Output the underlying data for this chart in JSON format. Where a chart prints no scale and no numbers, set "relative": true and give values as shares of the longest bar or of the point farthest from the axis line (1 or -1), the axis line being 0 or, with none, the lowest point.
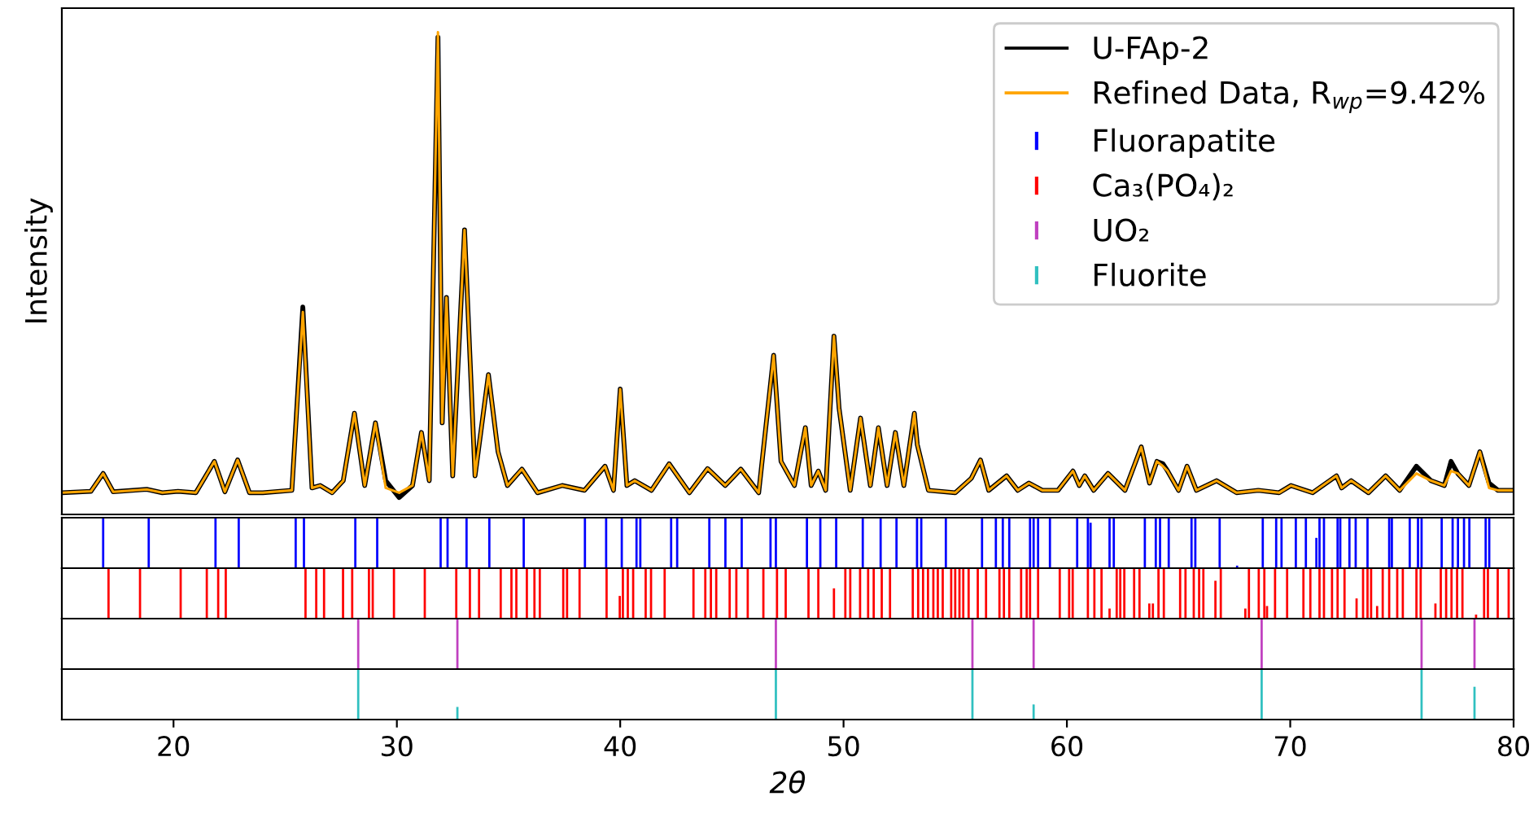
{
  "chart_data": [
    {
      "type": "line",
      "relative": true,
      "ylabel": "Intensity",
      "xlim": [
        15,
        80
      ],
      "tick_labels": false,
      "legend": "top right",
      "line_style": "solid",
      "marker": "none",
      "x": [
        15,
        16.3,
        16.85,
        17.3,
        18.8,
        19.5,
        20.2,
        21.0,
        21.83,
        22.3,
        22.87,
        23.4,
        24.0,
        25.3,
        25.79,
        26.2,
        26.57,
        27.1,
        27.6,
        28.1,
        28.56,
        29.04,
        29.5,
        30.1,
        30.7,
        31.1,
        31.45,
        31.84,
        32.03,
        32.22,
        32.5,
        33.03,
        33.5,
        34.1,
        34.53,
        34.95,
        35.6,
        36.3,
        37.4,
        38.4,
        39.32,
        39.7,
        40.0,
        40.3,
        40.65,
        41.4,
        42.19,
        43.1,
        43.91,
        44.7,
        45.4,
        46.2,
        46.87,
        47.2,
        47.8,
        48.29,
        48.55,
        48.87,
        49.2,
        49.57,
        49.8,
        50.3,
        50.76,
        51.2,
        51.56,
        51.95,
        52.32,
        52.7,
        53.17,
        53.3,
        53.8,
        55.0,
        55.72,
        56.13,
        56.5,
        57.3,
        57.8,
        58.3,
        58.9,
        59.6,
        60.27,
        60.55,
        60.8,
        61.2,
        61.84,
        62.6,
        63.33,
        63.7,
        64.03,
        64.3,
        64.51,
        65.0,
        65.38,
        65.8,
        66.7,
        67.6,
        68.57,
        69.5,
        70.03,
        71.0,
        72.07,
        72.3,
        72.73,
        73.5,
        74.27,
        74.9,
        75.65,
        76.3,
        76.9,
        77.2,
        77.5,
        78.0,
        78.49,
        78.9,
        79.3,
        80
      ],
      "series": [
        {
          "name": "U-FAp-2",
          "color": "#000000",
          "values": [
            0.045,
            0.048,
            0.085,
            0.047,
            0.052,
            0.045,
            0.048,
            0.045,
            0.11,
            0.047,
            0.113,
            0.045,
            0.045,
            0.05,
            0.43,
            0.055,
            0.06,
            0.045,
            0.07,
            0.21,
            0.06,
            0.19,
            0.07,
            0.035,
            0.06,
            0.17,
            0.07,
            0.99,
            0.19,
            0.45,
            0.08,
            0.59,
            0.08,
            0.29,
            0.13,
            0.06,
            0.094,
            0.045,
            0.06,
            0.05,
            0.1,
            0.05,
            0.26,
            0.06,
            0.07,
            0.05,
            0.105,
            0.045,
            0.095,
            0.06,
            0.094,
            0.045,
            0.33,
            0.11,
            0.06,
            0.18,
            0.06,
            0.09,
            0.05,
            0.37,
            0.22,
            0.05,
            0.2,
            0.06,
            0.18,
            0.06,
            0.17,
            0.06,
            0.21,
            0.145,
            0.05,
            0.045,
            0.075,
            0.113,
            0.05,
            0.08,
            0.05,
            0.065,
            0.05,
            0.05,
            0.09,
            0.06,
            0.08,
            0.05,
            0.085,
            0.05,
            0.14,
            0.065,
            0.11,
            0.105,
            0.09,
            0.05,
            0.1,
            0.05,
            0.07,
            0.045,
            0.05,
            0.045,
            0.06,
            0.045,
            0.08,
            0.055,
            0.07,
            0.045,
            0.08,
            0.05,
            0.1,
            0.07,
            0.06,
            0.11,
            0.085,
            0.06,
            0.13,
            0.065,
            0.05,
            0.05
          ]
        },
        {
          "name": "Refined Data, R$_{wp}$=9.42%",
          "color": "#ffa500",
          "values": [
            0.045,
            0.048,
            0.085,
            0.047,
            0.052,
            0.045,
            0.048,
            0.045,
            0.11,
            0.047,
            0.113,
            0.045,
            0.045,
            0.05,
            0.42,
            0.055,
            0.06,
            0.045,
            0.07,
            0.21,
            0.06,
            0.19,
            0.055,
            0.045,
            0.06,
            0.17,
            0.07,
            1.0,
            0.19,
            0.45,
            0.08,
            0.59,
            0.08,
            0.29,
            0.13,
            0.06,
            0.094,
            0.045,
            0.06,
            0.05,
            0.1,
            0.05,
            0.26,
            0.06,
            0.07,
            0.05,
            0.105,
            0.045,
            0.095,
            0.06,
            0.094,
            0.045,
            0.33,
            0.11,
            0.06,
            0.18,
            0.06,
            0.09,
            0.05,
            0.37,
            0.22,
            0.05,
            0.2,
            0.06,
            0.18,
            0.06,
            0.17,
            0.06,
            0.21,
            0.145,
            0.05,
            0.045,
            0.075,
            0.113,
            0.05,
            0.08,
            0.05,
            0.065,
            0.05,
            0.05,
            0.09,
            0.06,
            0.08,
            0.05,
            0.085,
            0.05,
            0.14,
            0.065,
            0.11,
            0.1,
            0.09,
            0.05,
            0.1,
            0.05,
            0.07,
            0.045,
            0.05,
            0.045,
            0.06,
            0.045,
            0.08,
            0.055,
            0.07,
            0.045,
            0.08,
            0.05,
            0.085,
            0.07,
            0.06,
            0.09,
            0.085,
            0.06,
            0.13,
            0.055,
            0.05,
            0.05
          ]
        }
      ]
    },
    {
      "type": "bar",
      "relative": true,
      "xlim": [
        15,
        80
      ],
      "tick_labels": false,
      "x": [
        16.85,
        18.89,
        21.88,
        22.92,
        25.47,
        25.84,
        28.14,
        29.12,
        31.96,
        32.27,
        33.12,
        34.14,
        35.68,
        38.42,
        39.37,
        40.07,
        40.73,
        40.9,
        42.28,
        42.55,
        43.99,
        44.71,
        45.44,
        46.73,
        46.97,
        48.36,
        48.96,
        49.67,
        50.86,
        51.66,
        52.37,
        53.29,
        53.48,
        54.58,
        56.2,
        56.82,
        57.13,
        57.42,
        58.35,
        58.51,
        58.71,
        59.24,
        60.46,
        60.94,
        61.06,
        61.91,
        62.1,
        63.49,
        63.98,
        64.17,
        64.56,
        65.58,
        65.75,
        66.84,
        67.62,
        68.77,
        69.37,
        69.61,
        70.25,
        70.7,
        71.17,
        71.31,
        71.51,
        72.12,
        72.24,
        72.65,
        72.93,
        73.46,
        74.43,
        74.55,
        75.35,
        75.72,
        75.88,
        76.78,
        77.27,
        77.51,
        77.78,
        78.02,
        78.75,
        78.91
      ],
      "series": [
        {
          "name": "Fluorapatite",
          "color": "#0000ff",
          "values": [
            1,
            1,
            1,
            1,
            1,
            1,
            1,
            1,
            1,
            1,
            1,
            1,
            1,
            1,
            1,
            1,
            1,
            1,
            1,
            1,
            1,
            1,
            1,
            1,
            1,
            1,
            1,
            1,
            1,
            1,
            1,
            1,
            1,
            1,
            1,
            1,
            1,
            1,
            1,
            1,
            1,
            1,
            1,
            1,
            0.9,
            1,
            1,
            1,
            1,
            1,
            1,
            1,
            1,
            1,
            0.05,
            1,
            1,
            1,
            1,
            1,
            0.6,
            1,
            1,
            1,
            1,
            1,
            1,
            1,
            1,
            1,
            1,
            1,
            1,
            1,
            1,
            1,
            1,
            1,
            1,
            1
          ]
        }
      ]
    },
    {
      "type": "bar",
      "relative": true,
      "xlim": [
        15,
        80
      ],
      "tick_labels": false,
      "x": [
        17.09,
        18.5,
        20.32,
        21.49,
        22.0,
        22.34,
        25.91,
        26.39,
        26.74,
        27.59,
        28.0,
        28.75,
        28.92,
        29.87,
        31.25,
        32.66,
        33.27,
        33.68,
        34.65,
        35.13,
        35.35,
        35.82,
        36.16,
        36.4,
        37.45,
        37.62,
        38.18,
        39.39,
        39.98,
        40.12,
        40.34,
        40.58,
        41.14,
        41.38,
        41.99,
        43.28,
        43.81,
        44.06,
        44.3,
        44.9,
        45.2,
        45.71,
        46.41,
        47.02,
        47.41,
        48.43,
        48.87,
        49.57,
        50.08,
        50.3,
        50.74,
        51.1,
        51.35,
        51.71,
        52.08,
        53.1,
        53.34,
        53.56,
        53.78,
        54.02,
        54.22,
        54.44,
        54.82,
        55.0,
        55.19,
        55.36,
        55.6,
        56.01,
        56.38,
        56.98,
        57.18,
        57.42,
        57.95,
        58.2,
        58.35,
        58.71,
        59.68,
        60.1,
        60.26,
        60.94,
        61.23,
        61.55,
        61.91,
        62.23,
        62.39,
        62.57,
        63.01,
        63.25,
        63.69,
        63.85,
        64.1,
        64.34,
        65.07,
        65.31,
        65.68,
        65.92,
        66.11,
        66.65,
        66.89,
        67.99,
        68.15,
        68.59,
        68.84,
        68.96,
        69.32,
        69.86,
        70.59,
        70.9,
        71.31,
        71.51,
        71.87,
        72.12,
        72.43,
        72.97,
        73.26,
        73.46,
        73.62,
        73.89,
        74.14,
        74.43,
        74.79,
        75.04,
        75.65,
        75.84,
        76.5,
        76.74,
        76.98,
        77.22,
        77.47,
        77.71,
        78.32,
        78.68,
        78.85,
        79.29,
        79.78
      ],
      "series": [
        {
          "name": "Ca₃(PO₄)₂",
          "color": "#ff0000",
          "values": [
            1,
            1,
            1,
            1,
            1,
            1,
            1,
            1,
            1,
            1,
            1,
            1,
            1,
            1,
            1,
            1,
            1,
            1,
            1,
            1,
            1,
            1,
            1,
            1,
            1,
            1,
            1,
            1,
            0.45,
            1,
            1,
            1,
            1,
            1,
            1,
            1,
            1,
            1,
            1,
            1,
            1,
            1,
            1,
            1,
            1,
            1,
            1,
            0.6,
            1,
            1,
            1,
            1,
            1,
            1,
            1,
            1,
            1,
            1,
            1,
            1,
            1,
            1,
            1,
            1,
            1,
            1,
            1,
            1,
            1,
            1,
            1,
            1,
            1,
            1,
            1,
            1,
            1,
            1,
            1,
            1,
            1,
            1,
            0.2,
            1,
            1,
            1,
            1,
            1,
            0.3,
            0.3,
            1,
            1,
            1,
            1,
            1,
            1,
            1,
            0.75,
            1,
            0.2,
            1,
            1,
            1,
            0.25,
            1,
            1,
            1,
            1,
            1,
            1,
            1,
            1,
            1,
            0.4,
            1,
            1,
            1,
            0.25,
            1,
            1,
            1,
            1,
            1,
            1,
            0.3,
            1,
            1,
            1,
            1,
            1,
            0.08,
            1,
            1,
            1,
            1
          ]
        }
      ]
    },
    {
      "type": "bar",
      "relative": true,
      "xlim": [
        15,
        80
      ],
      "tick_labels": false,
      "x": [
        28.27,
        32.71,
        46.97,
        55.77,
        58.51,
        68.72,
        75.88,
        78.25
      ],
      "series": [
        {
          "name": "UO₂",
          "color": "#c040c0",
          "values": [
            1,
            1,
            1,
            1,
            1,
            1,
            1,
            1
          ]
        }
      ]
    },
    {
      "type": "bar",
      "relative": true,
      "xlim": [
        15,
        80
      ],
      "xticks": [
        20,
        30,
        40,
        50,
        60,
        70,
        80
      ],
      "tick_labels": "x",
      "xlabel": "2θ",
      "x": [
        28.27,
        32.71,
        46.97,
        55.77,
        58.51,
        68.72,
        75.88,
        78.25
      ],
      "series": [
        {
          "name": "Fluorite",
          "color": "#30c0c0",
          "values": [
            1,
            0.25,
            1,
            1,
            0.3,
            1,
            1,
            0.65
          ]
        }
      ]
    }
  ]
}
